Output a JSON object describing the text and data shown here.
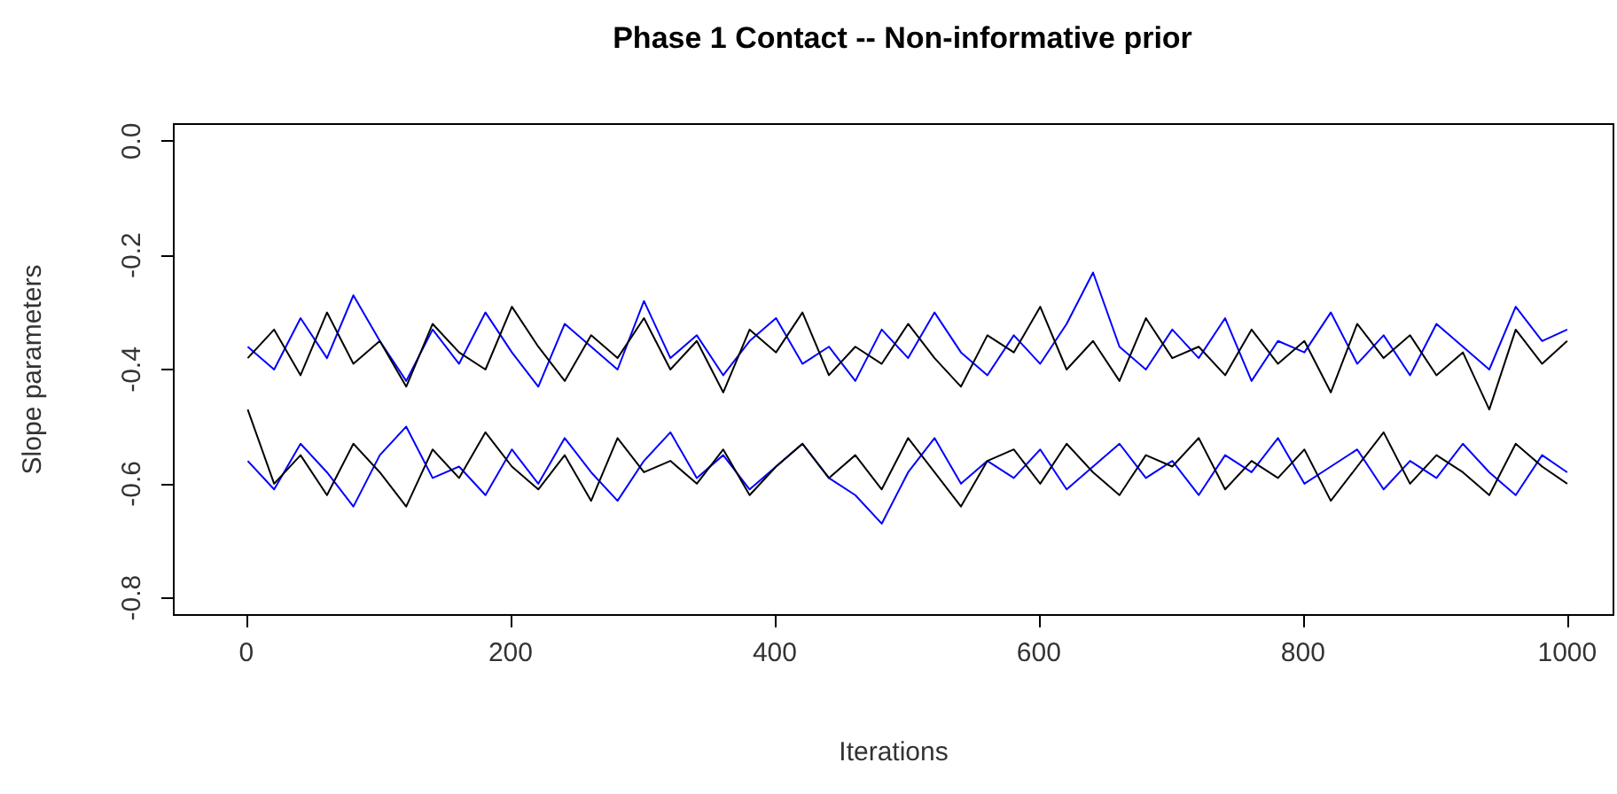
{
  "chart_data": {
    "type": "line",
    "title": "Phase 1 Contact -- Non-informative prior",
    "xlabel": "Iterations",
    "ylabel": "Slope parameters",
    "x": [
      1,
      21,
      41,
      61,
      81,
      101,
      121,
      141,
      161,
      181,
      201,
      221,
      241,
      261,
      281,
      301,
      321,
      341,
      361,
      381,
      401,
      421,
      441,
      461,
      481,
      501,
      521,
      541,
      561,
      581,
      601,
      621,
      641,
      661,
      681,
      701,
      721,
      741,
      761,
      781,
      801,
      821,
      841,
      861,
      881,
      901,
      921,
      941,
      961,
      981,
      1000
    ],
    "series": [
      {
        "color": "#0000ff",
        "values": [
          -0.36,
          -0.4,
          -0.31,
          -0.38,
          -0.27,
          -0.35,
          -0.42,
          -0.33,
          -0.39,
          -0.3,
          -0.37,
          -0.43,
          -0.32,
          -0.36,
          -0.4,
          -0.28,
          -0.38,
          -0.34,
          -0.41,
          -0.35,
          -0.31,
          -0.39,
          -0.36,
          -0.42,
          -0.33,
          -0.38,
          -0.3,
          -0.37,
          -0.41,
          -0.34,
          -0.39,
          -0.32,
          -0.23,
          -0.36,
          -0.4,
          -0.33,
          -0.38,
          -0.31,
          -0.42,
          -0.35,
          -0.37,
          -0.3,
          -0.39,
          -0.34,
          -0.41,
          -0.32,
          -0.36,
          -0.4,
          -0.29,
          -0.35,
          -0.33
        ]
      },
      {
        "color": "#000000",
        "values": [
          -0.38,
          -0.33,
          -0.41,
          -0.3,
          -0.39,
          -0.35,
          -0.43,
          -0.32,
          -0.37,
          -0.4,
          -0.29,
          -0.36,
          -0.42,
          -0.34,
          -0.38,
          -0.31,
          -0.4,
          -0.35,
          -0.44,
          -0.33,
          -0.37,
          -0.3,
          -0.41,
          -0.36,
          -0.39,
          -0.32,
          -0.38,
          -0.43,
          -0.34,
          -0.37,
          -0.29,
          -0.4,
          -0.35,
          -0.42,
          -0.31,
          -0.38,
          -0.36,
          -0.41,
          -0.33,
          -0.39,
          -0.35,
          -0.44,
          -0.32,
          -0.38,
          -0.34,
          -0.41,
          -0.37,
          -0.47,
          -0.33,
          -0.39,
          -0.35
        ]
      },
      {
        "color": "#0000ff",
        "values": [
          -0.56,
          -0.61,
          -0.53,
          -0.58,
          -0.64,
          -0.55,
          -0.5,
          -0.59,
          -0.57,
          -0.62,
          -0.54,
          -0.6,
          -0.52,
          -0.58,
          -0.63,
          -0.56,
          -0.51,
          -0.59,
          -0.55,
          -0.61,
          -0.57,
          -0.53,
          -0.59,
          -0.62,
          -0.67,
          -0.58,
          -0.52,
          -0.6,
          -0.56,
          -0.59,
          -0.54,
          -0.61,
          -0.57,
          -0.53,
          -0.59,
          -0.56,
          -0.62,
          -0.55,
          -0.58,
          -0.52,
          -0.6,
          -0.57,
          -0.54,
          -0.61,
          -0.56,
          -0.59,
          -0.53,
          -0.58,
          -0.62,
          -0.55,
          -0.58
        ]
      },
      {
        "color": "#000000",
        "values": [
          -0.47,
          -0.6,
          -0.55,
          -0.62,
          -0.53,
          -0.58,
          -0.64,
          -0.54,
          -0.59,
          -0.51,
          -0.57,
          -0.61,
          -0.55,
          -0.63,
          -0.52,
          -0.58,
          -0.56,
          -0.6,
          -0.54,
          -0.62,
          -0.57,
          -0.53,
          -0.59,
          -0.55,
          -0.61,
          -0.52,
          -0.58,
          -0.64,
          -0.56,
          -0.54,
          -0.6,
          -0.53,
          -0.58,
          -0.62,
          -0.55,
          -0.57,
          -0.52,
          -0.61,
          -0.56,
          -0.59,
          -0.54,
          -0.63,
          -0.57,
          -0.51,
          -0.6,
          -0.55,
          -0.58,
          -0.62,
          -0.53,
          -0.57,
          -0.6
        ]
      }
    ],
    "xlim": [
      -55,
      1035
    ],
    "xticks": [
      0,
      200,
      400,
      600,
      800,
      1000
    ],
    "ylim": [
      -0.83,
      0.03
    ],
    "yticks": [
      {
        "value": 0,
        "label": "0.0"
      },
      -0.2,
      -0.4,
      -0.6,
      -0.8
    ],
    "marker": "none",
    "line_style": "solid",
    "grid": false
  }
}
